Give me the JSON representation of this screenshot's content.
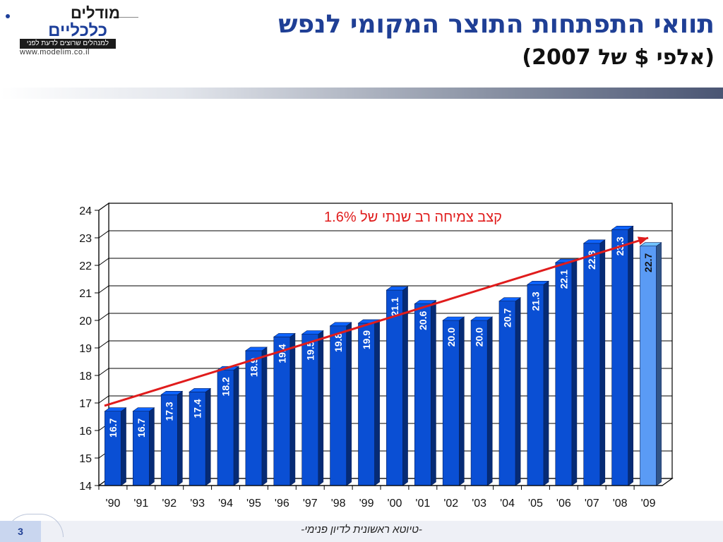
{
  "logo": {
    "word1": "מודלים",
    "word2": "כלכליים",
    "tagline": "למנהלים שרוצים לדעת לפני",
    "url": "www.modelim.co.il"
  },
  "slide": {
    "title": "תוואי התפתחות התוצר המקומי לנפש",
    "subtitle": "(אלפי $ של 2007)",
    "page_number": "3",
    "footer_note": "-טיוטא ראשונית לדיון פנימי-"
  },
  "colors": {
    "title": "#1f3f95",
    "bar": "#0a4fd4",
    "bar_highlight": "#5a9bf5",
    "trend": "#e01c1c"
  },
  "chart_data": {
    "type": "bar",
    "title": "",
    "xlabel": "",
    "ylabel": "",
    "categories": [
      "'90",
      "'91",
      "'92",
      "'93",
      "'94",
      "'95",
      "'96",
      "'97",
      "'98",
      "'99",
      "'00",
      "'01",
      "'02",
      "'03",
      "'04",
      "'05",
      "'06",
      "'07",
      "'08",
      "'09"
    ],
    "values": [
      16.7,
      16.7,
      17.3,
      17.4,
      18.2,
      18.9,
      19.4,
      19.5,
      19.8,
      19.9,
      21.1,
      20.6,
      20.0,
      20.0,
      20.7,
      21.3,
      22.1,
      22.8,
      23.3,
      22.7
    ],
    "data_labels": [
      "16.7",
      "16.7",
      "17.3",
      "17.4",
      "18.2",
      "18.9",
      "19.4",
      "19.5",
      "19.8",
      "19.9",
      "21.1",
      "20.6",
      "20.0",
      "20.0",
      "20.7",
      "21.3",
      "22.1",
      "22.8",
      "23.3",
      "22.7"
    ],
    "highlighted_category": "'09",
    "ylim": [
      14,
      24
    ],
    "yticks": [
      "14",
      "15",
      "16",
      "17",
      "18",
      "19",
      "20",
      "21",
      "22",
      "23",
      "24"
    ],
    "grid": true,
    "annotation": {
      "text": "קצב צמיחה רב שנתי של 1.6%",
      "arrow_from": {
        "category": "'90",
        "value": 16.9
      },
      "arrow_to": {
        "category": "'09",
        "value": 23.0
      }
    }
  }
}
